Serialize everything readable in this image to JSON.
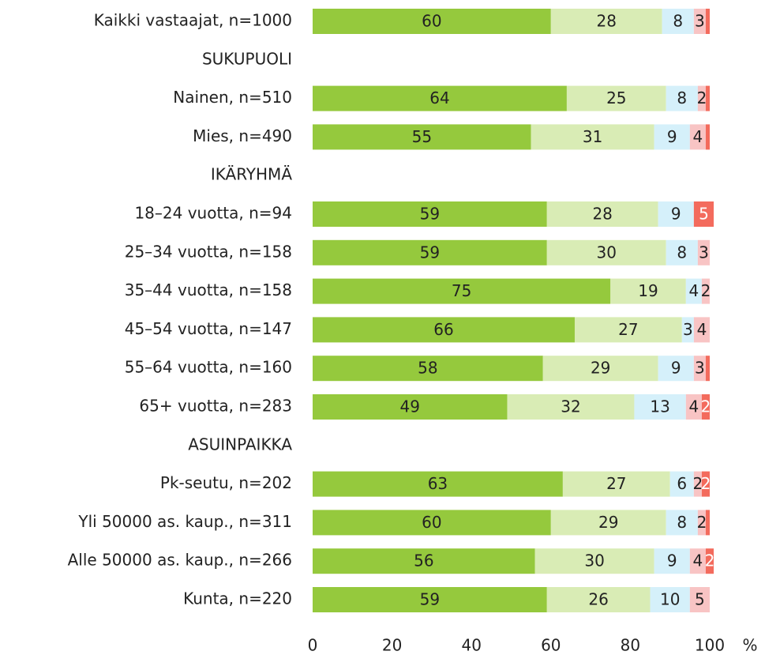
{
  "chart_data": {
    "type": "stacked-bar-horizontal",
    "categories": [
      "Kaikki vastaajat, n=1000",
      "SUKUPUOLI",
      "Nainen, n=510",
      "Mies, n=490",
      "IKÄRYHMÄ",
      "18–24 vuotta, n=94",
      "25–34 vuotta, n=158",
      "35–44 vuotta, n=158",
      "45–54 vuotta, n=147",
      "55–64 vuotta, n=160",
      "65+ vuotta, n=283",
      "ASUINPAIKKA",
      "Pk-seutu, n=202",
      "Yli 50000 as. kaup., n=311",
      "Alle 50000 as. kaup., n=266",
      "Kunta, n=220"
    ],
    "series": [
      {
        "color": "#95c93d",
        "values": [
          60,
          null,
          64,
          55,
          null,
          59,
          59,
          75,
          66,
          58,
          49,
          null,
          63,
          60,
          56,
          59
        ]
      },
      {
        "color": "#d9ecb5",
        "values": [
          28,
          null,
          25,
          31,
          null,
          28,
          30,
          19,
          27,
          29,
          32,
          null,
          27,
          29,
          30,
          26
        ]
      },
      {
        "color": "#d5f0fa",
        "values": [
          8,
          null,
          8,
          9,
          null,
          9,
          8,
          4,
          3,
          9,
          13,
          null,
          6,
          8,
          9,
          10
        ]
      },
      {
        "color": "#f8c4c4",
        "values": [
          3,
          null,
          2,
          4,
          null,
          null,
          3,
          2,
          4,
          3,
          4,
          null,
          2,
          2,
          4,
          5
        ]
      },
      {
        "color": "#f36b5d",
        "values": [
          1,
          null,
          1,
          1,
          null,
          5,
          null,
          null,
          null,
          1,
          2,
          null,
          2,
          1,
          2,
          null
        ]
      }
    ],
    "xlim": [
      0,
      100
    ],
    "xticks": [
      0,
      20,
      40,
      60,
      80,
      100
    ],
    "xlabel": "%"
  }
}
